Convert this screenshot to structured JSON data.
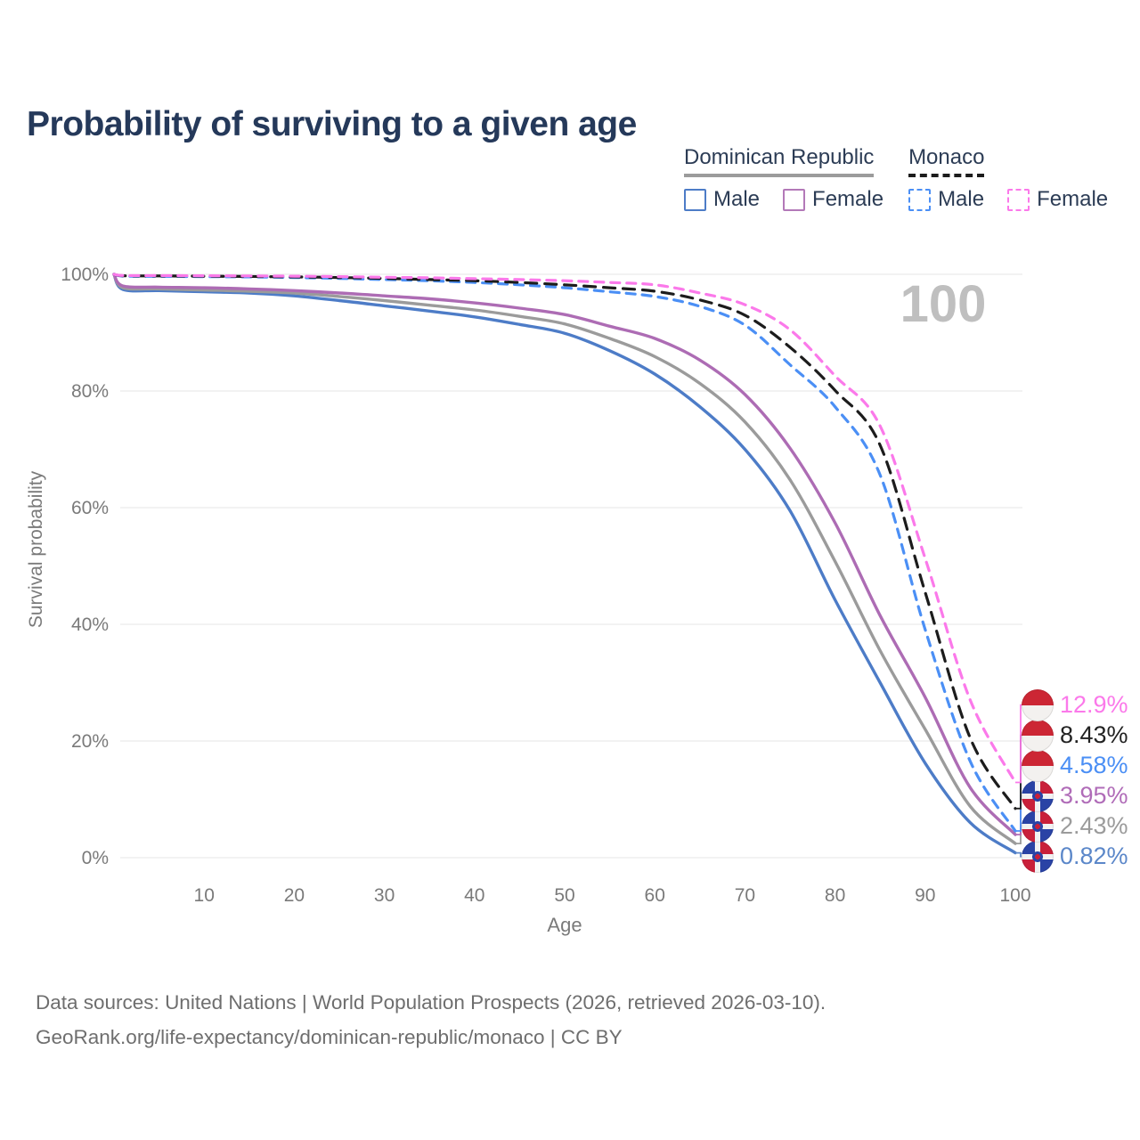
{
  "title": "Probability of surviving to a given age",
  "watermark_age": "100",
  "legend": {
    "groups": [
      {
        "name": "Dominican Republic",
        "line_style": "solid",
        "underline_color": "#9b9b9b",
        "items": [
          {
            "label": "Male",
            "color": "#4d7cc7"
          },
          {
            "label": "Female",
            "color": "#b379b8"
          }
        ]
      },
      {
        "name": "Monaco",
        "line_style": "dashed",
        "underline_color": "#1c1c1c",
        "items": [
          {
            "label": "Male",
            "color": "#4b8ff5"
          },
          {
            "label": "Female",
            "color": "#fb79ea"
          }
        ]
      }
    ]
  },
  "chart_data": {
    "type": "line",
    "title": "Probability of surviving to a given age",
    "xlabel": "Age",
    "ylabel": "Survival probability",
    "xlim": [
      0,
      100
    ],
    "ylim": [
      0,
      100
    ],
    "x_ticks": [
      10,
      20,
      30,
      40,
      50,
      60,
      70,
      80,
      90,
      100
    ],
    "y_ticks_percent": [
      0,
      20,
      40,
      60,
      80,
      100
    ],
    "grid": "horizontal",
    "legend_position": "top-right",
    "x": [
      0,
      1,
      5,
      10,
      15,
      20,
      25,
      30,
      35,
      40,
      45,
      50,
      55,
      60,
      65,
      70,
      75,
      80,
      85,
      90,
      95,
      100
    ],
    "series": [
      {
        "name": "Dominican Republic Male",
        "country": "Dominican Republic",
        "subset": "Male",
        "style": "solid",
        "color": "#4d7cc7",
        "values": [
          100,
          97.4,
          97.2,
          97.0,
          96.8,
          96.3,
          95.5,
          94.6,
          93.7,
          92.7,
          91.4,
          89.9,
          86.9,
          82.9,
          77.3,
          70.0,
          59.5,
          44.2,
          30.0,
          16.2,
          6.0,
          0.82
        ],
        "end_label": {
          "text": "0.82%",
          "color": "#5b87c9",
          "flag": "dominican-republic"
        }
      },
      {
        "name": "Dominican Republic Total",
        "country": "Dominican Republic",
        "subset": "Both sexes",
        "style": "solid",
        "color": "#9b9b9b",
        "values": [
          100,
          97.7,
          97.5,
          97.3,
          97.1,
          96.8,
          96.2,
          95.5,
          94.7,
          93.9,
          92.8,
          91.5,
          89.0,
          85.9,
          81.3,
          74.7,
          64.8,
          50.8,
          35.5,
          22.0,
          8.8,
          2.43
        ],
        "end_label": {
          "text": "2.43%",
          "color": "#9b9b9b",
          "flag": "dominican-republic"
        }
      },
      {
        "name": "Dominican Republic Female",
        "country": "Dominican Republic",
        "subset": "Female",
        "style": "solid",
        "color": "#ad6cb4",
        "values": [
          100,
          98.0,
          97.8,
          97.7,
          97.5,
          97.2,
          96.8,
          96.3,
          95.8,
          95.1,
          94.2,
          93.1,
          91.1,
          89.0,
          85.3,
          79.4,
          70.2,
          57.4,
          41.5,
          27.5,
          12.0,
          3.95
        ],
        "end_label": {
          "text": "3.95%",
          "color": "#b06cb8",
          "flag": "dominican-republic"
        }
      },
      {
        "name": "Monaco Male",
        "country": "Monaco",
        "subset": "Male",
        "style": "dashed",
        "color": "#4b8ff5",
        "values": [
          100,
          99.7,
          99.65,
          99.6,
          99.55,
          99.45,
          99.3,
          99.1,
          98.9,
          98.6,
          98.2,
          97.7,
          97.0,
          96.2,
          94.5,
          91.3,
          84.5,
          77.3,
          65.6,
          39.1,
          16.5,
          4.58
        ],
        "end_label": {
          "text": "4.58%",
          "color": "#4b8ff5",
          "flag": "monaco"
        }
      },
      {
        "name": "Monaco Total",
        "country": "Monaco",
        "subset": "Both sexes",
        "style": "dashed",
        "color": "#1c1c1c",
        "values": [
          100,
          99.75,
          99.72,
          99.68,
          99.63,
          99.55,
          99.45,
          99.3,
          99.1,
          98.9,
          98.6,
          98.2,
          97.7,
          97.1,
          95.6,
          93.0,
          87.5,
          80.1,
          70.7,
          45.5,
          20.5,
          8.43
        ],
        "end_label": {
          "text": "8.43%",
          "color": "#222222",
          "flag": "monaco"
        }
      },
      {
        "name": "Monaco Female",
        "country": "Monaco",
        "subset": "Female",
        "style": "dashed",
        "color": "#fb79ea",
        "values": [
          100,
          99.8,
          99.78,
          99.75,
          99.72,
          99.68,
          99.6,
          99.5,
          99.4,
          99.25,
          99.1,
          98.9,
          98.6,
          98.2,
          96.8,
          94.8,
          90.5,
          82.6,
          74.0,
          51.3,
          27.0,
          12.9
        ],
        "end_label": {
          "text": "12.9%",
          "color": "#fb79ea",
          "flag": "monaco"
        }
      }
    ]
  },
  "footer": {
    "line1": "Data sources: United Nations | World Population Prospects (2026, retrieved 2026-03-10).",
    "line2": "GeoRank.org/life-expectancy/dominican-republic/monaco | CC BY"
  }
}
